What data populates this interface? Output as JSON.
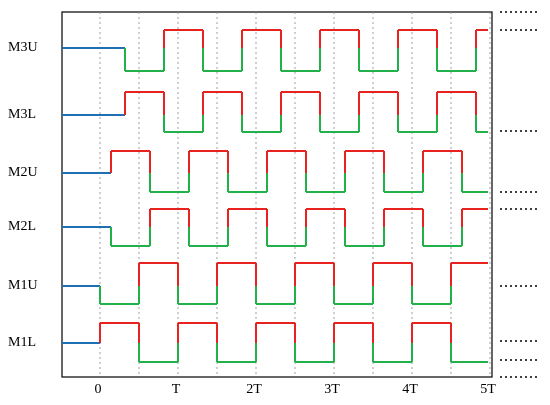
{
  "rows": [
    {
      "label": "M3U"
    },
    {
      "label": "M3L"
    },
    {
      "label": "M2U"
    },
    {
      "label": "M2L"
    },
    {
      "label": "M1U"
    },
    {
      "label": "M1L"
    }
  ],
  "time_labels": [
    "0",
    "T",
    "2T",
    "3T",
    "4T",
    "5T"
  ]
}
